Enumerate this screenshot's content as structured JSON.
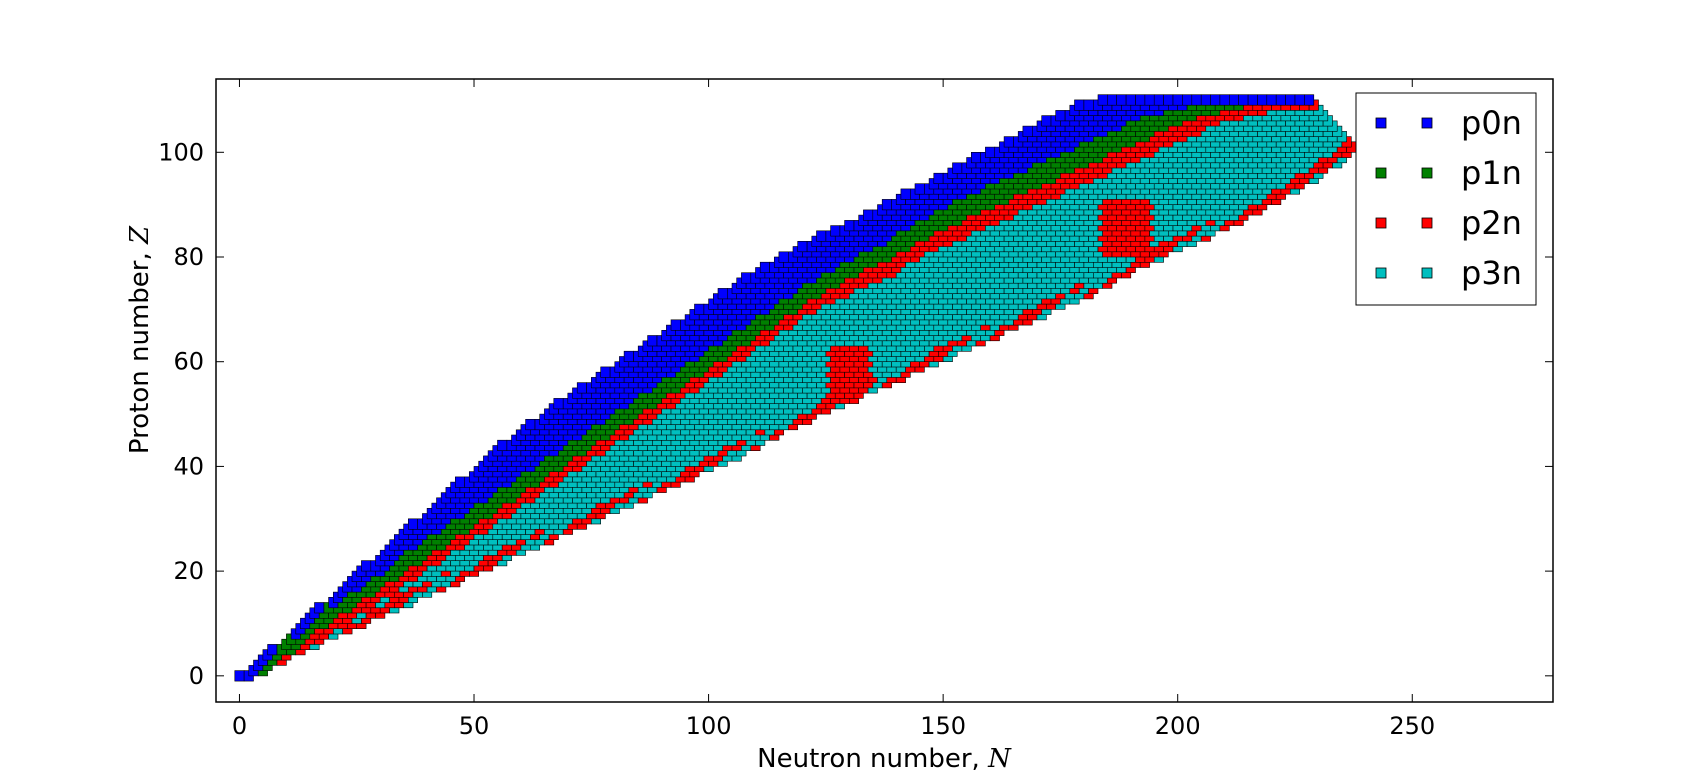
{
  "chart_data": {
    "type": "scatter",
    "title": "",
    "xlabel": "Neutron number, ",
    "xlabel_symbol": "N",
    "ylabel": "Proton number, ",
    "ylabel_symbol": "Z",
    "xlim": [
      -5,
      280
    ],
    "ylim": [
      -5,
      114
    ],
    "xticks": [
      0,
      50,
      100,
      150,
      200,
      250
    ],
    "yticks": [
      0,
      20,
      40,
      60,
      80,
      100
    ],
    "grid": false,
    "legend_position": "top-right",
    "marker": "square",
    "series": [
      {
        "name": "p0n",
        "color": "#0000ff",
        "description": "nuclides where no neutron is emitted; lies along the proton-rich (upper) edge of the nuclear chart"
      },
      {
        "name": "p1n",
        "color": "#008000",
        "description": "one-neutron emission; thin band just below p0n"
      },
      {
        "name": "p2n",
        "color": "#ff0000",
        "description": "two-neutron emission; band below p1n plus patches near the neutron-rich edge"
      },
      {
        "name": "p3n",
        "color": "#00bfbf",
        "description": "three-neutron emission; fills the bulk interior of the chart"
      }
    ],
    "boundaries": {
      "upper_edge": [
        [
          1,
          0
        ],
        [
          5,
          3
        ],
        [
          10,
          7
        ],
        [
          15,
          11
        ],
        [
          20,
          15
        ],
        [
          25,
          19
        ],
        [
          30,
          23
        ],
        [
          35,
          27
        ],
        [
          40,
          31
        ],
        [
          45,
          35
        ],
        [
          50,
          39
        ],
        [
          55,
          43
        ],
        [
          60,
          46
        ],
        [
          65,
          50
        ],
        [
          70,
          53
        ],
        [
          75,
          56
        ],
        [
          80,
          59
        ],
        [
          85,
          62
        ],
        [
          90,
          65
        ],
        [
          95,
          68
        ],
        [
          100,
          71
        ],
        [
          105,
          74
        ],
        [
          110,
          77
        ],
        [
          115,
          79
        ],
        [
          120,
          82
        ],
        [
          125,
          84
        ],
        [
          130,
          86
        ],
        [
          135,
          88
        ],
        [
          140,
          91
        ],
        [
          145,
          93
        ],
        [
          150,
          95
        ],
        [
          155,
          98
        ],
        [
          160,
          100
        ],
        [
          165,
          102
        ],
        [
          170,
          105
        ],
        [
          175,
          107
        ],
        [
          180,
          109
        ],
        [
          185,
          110
        ],
        [
          190,
          110
        ],
        [
          200,
          110
        ],
        [
          210,
          110
        ],
        [
          220,
          110
        ],
        [
          229,
          110
        ],
        [
          231,
          107
        ],
        [
          235,
          104
        ],
        [
          237,
          102
        ]
      ],
      "lower_edge": [
        [
          2,
          0
        ],
        [
          6,
          2
        ],
        [
          10,
          4
        ],
        [
          15,
          6
        ],
        [
          20,
          8
        ],
        [
          25,
          10
        ],
        [
          30,
          12
        ],
        [
          35,
          14
        ],
        [
          40,
          16
        ],
        [
          45,
          18
        ],
        [
          50,
          20
        ],
        [
          55,
          22
        ],
        [
          60,
          24
        ],
        [
          65,
          26
        ],
        [
          70,
          28
        ],
        [
          75,
          30
        ],
        [
          80,
          32
        ],
        [
          85,
          34
        ],
        [
          90,
          36
        ],
        [
          95,
          38
        ],
        [
          100,
          40
        ],
        [
          105,
          42
        ],
        [
          110,
          44
        ],
        [
          115,
          47
        ],
        [
          120,
          49
        ],
        [
          125,
          51
        ],
        [
          130,
          53
        ],
        [
          135,
          55
        ],
        [
          140,
          57
        ],
        [
          145,
          59
        ],
        [
          150,
          61
        ],
        [
          155,
          63
        ],
        [
          160,
          65
        ],
        [
          165,
          67
        ],
        [
          170,
          69
        ],
        [
          175,
          71
        ],
        [
          180,
          73
        ],
        [
          185,
          75
        ],
        [
          190,
          78
        ],
        [
          195,
          80
        ],
        [
          200,
          82
        ],
        [
          205,
          84
        ],
        [
          210,
          86
        ],
        [
          215,
          88
        ],
        [
          220,
          91
        ],
        [
          225,
          93
        ],
        [
          230,
          96
        ],
        [
          235,
          99
        ],
        [
          237,
          101
        ]
      ],
      "blue_lower": [
        [
          3,
          0
        ],
        [
          7,
          4
        ],
        [
          12,
          8
        ],
        [
          17,
          12
        ],
        [
          22,
          15
        ],
        [
          27,
          18
        ],
        [
          32,
          21
        ],
        [
          37,
          25
        ],
        [
          42,
          28
        ],
        [
          47,
          31
        ],
        [
          52,
          34
        ],
        [
          57,
          37
        ],
        [
          62,
          40
        ],
        [
          67,
          43
        ],
        [
          72,
          46
        ],
        [
          77,
          49
        ],
        [
          82,
          52
        ],
        [
          87,
          55
        ],
        [
          92,
          58
        ],
        [
          97,
          61
        ],
        [
          102,
          64
        ],
        [
          107,
          67
        ],
        [
          112,
          70
        ],
        [
          117,
          73
        ],
        [
          122,
          76
        ],
        [
          127,
          78
        ],
        [
          132,
          81
        ],
        [
          137,
          83
        ],
        [
          142,
          86
        ],
        [
          147,
          88
        ],
        [
          152,
          91
        ],
        [
          157,
          93
        ],
        [
          162,
          95
        ],
        [
          167,
          97
        ],
        [
          172,
          99
        ],
        [
          177,
          101
        ],
        [
          182,
          103
        ],
        [
          187,
          105
        ],
        [
          192,
          107
        ],
        [
          197,
          108
        ],
        [
          202,
          109
        ],
        [
          208,
          110
        ]
      ],
      "green_lower": [
        [
          4,
          0
        ],
        [
          8,
          3
        ],
        [
          13,
          6
        ],
        [
          18,
          10
        ],
        [
          23,
          13
        ],
        [
          28,
          16
        ],
        [
          33,
          19
        ],
        [
          38,
          22
        ],
        [
          43,
          25
        ],
        [
          48,
          28
        ],
        [
          53,
          31
        ],
        [
          58,
          34
        ],
        [
          63,
          37
        ],
        [
          68,
          40
        ],
        [
          73,
          43
        ],
        [
          78,
          46
        ],
        [
          83,
          49
        ],
        [
          88,
          52
        ],
        [
          93,
          55
        ],
        [
          98,
          58
        ],
        [
          103,
          61
        ],
        [
          108,
          64
        ],
        [
          113,
          67
        ],
        [
          118,
          70
        ],
        [
          123,
          73
        ],
        [
          128,
          75
        ],
        [
          133,
          78
        ],
        [
          138,
          80
        ],
        [
          143,
          82
        ],
        [
          148,
          85
        ],
        [
          153,
          87
        ],
        [
          158,
          89
        ],
        [
          163,
          91
        ],
        [
          168,
          93
        ],
        [
          173,
          95
        ],
        [
          178,
          97
        ],
        [
          183,
          99
        ],
        [
          188,
          101
        ],
        [
          193,
          103
        ],
        [
          198,
          105
        ],
        [
          203,
          107
        ],
        [
          208,
          108
        ],
        [
          213,
          109
        ],
        [
          218,
          110
        ]
      ],
      "red_lower": [
        [
          5,
          0
        ],
        [
          9,
          2
        ],
        [
          14,
          5
        ],
        [
          19,
          8
        ],
        [
          24,
          11
        ],
        [
          29,
          14
        ],
        [
          34,
          17
        ],
        [
          39,
          20
        ],
        [
          44,
          23
        ],
        [
          49,
          26
        ],
        [
          54,
          29
        ],
        [
          59,
          32
        ],
        [
          64,
          35
        ],
        [
          69,
          38
        ],
        [
          74,
          41
        ],
        [
          79,
          44
        ],
        [
          84,
          47
        ],
        [
          89,
          50
        ],
        [
          94,
          53
        ],
        [
          99,
          56
        ],
        [
          104,
          59
        ],
        [
          109,
          62
        ],
        [
          114,
          65
        ],
        [
          119,
          68
        ],
        [
          124,
          71
        ],
        [
          129,
          73
        ],
        [
          134,
          75
        ],
        [
          139,
          77
        ],
        [
          144,
          80
        ],
        [
          149,
          82
        ],
        [
          154,
          84
        ],
        [
          159,
          86
        ],
        [
          164,
          88
        ],
        [
          169,
          90
        ],
        [
          174,
          92
        ],
        [
          179,
          94
        ],
        [
          184,
          96
        ],
        [
          189,
          98
        ],
        [
          194,
          100
        ],
        [
          199,
          102
        ],
        [
          204,
          104
        ],
        [
          209,
          106
        ],
        [
          214,
          107
        ],
        [
          219,
          108
        ],
        [
          224,
          109
        ]
      ]
    }
  }
}
